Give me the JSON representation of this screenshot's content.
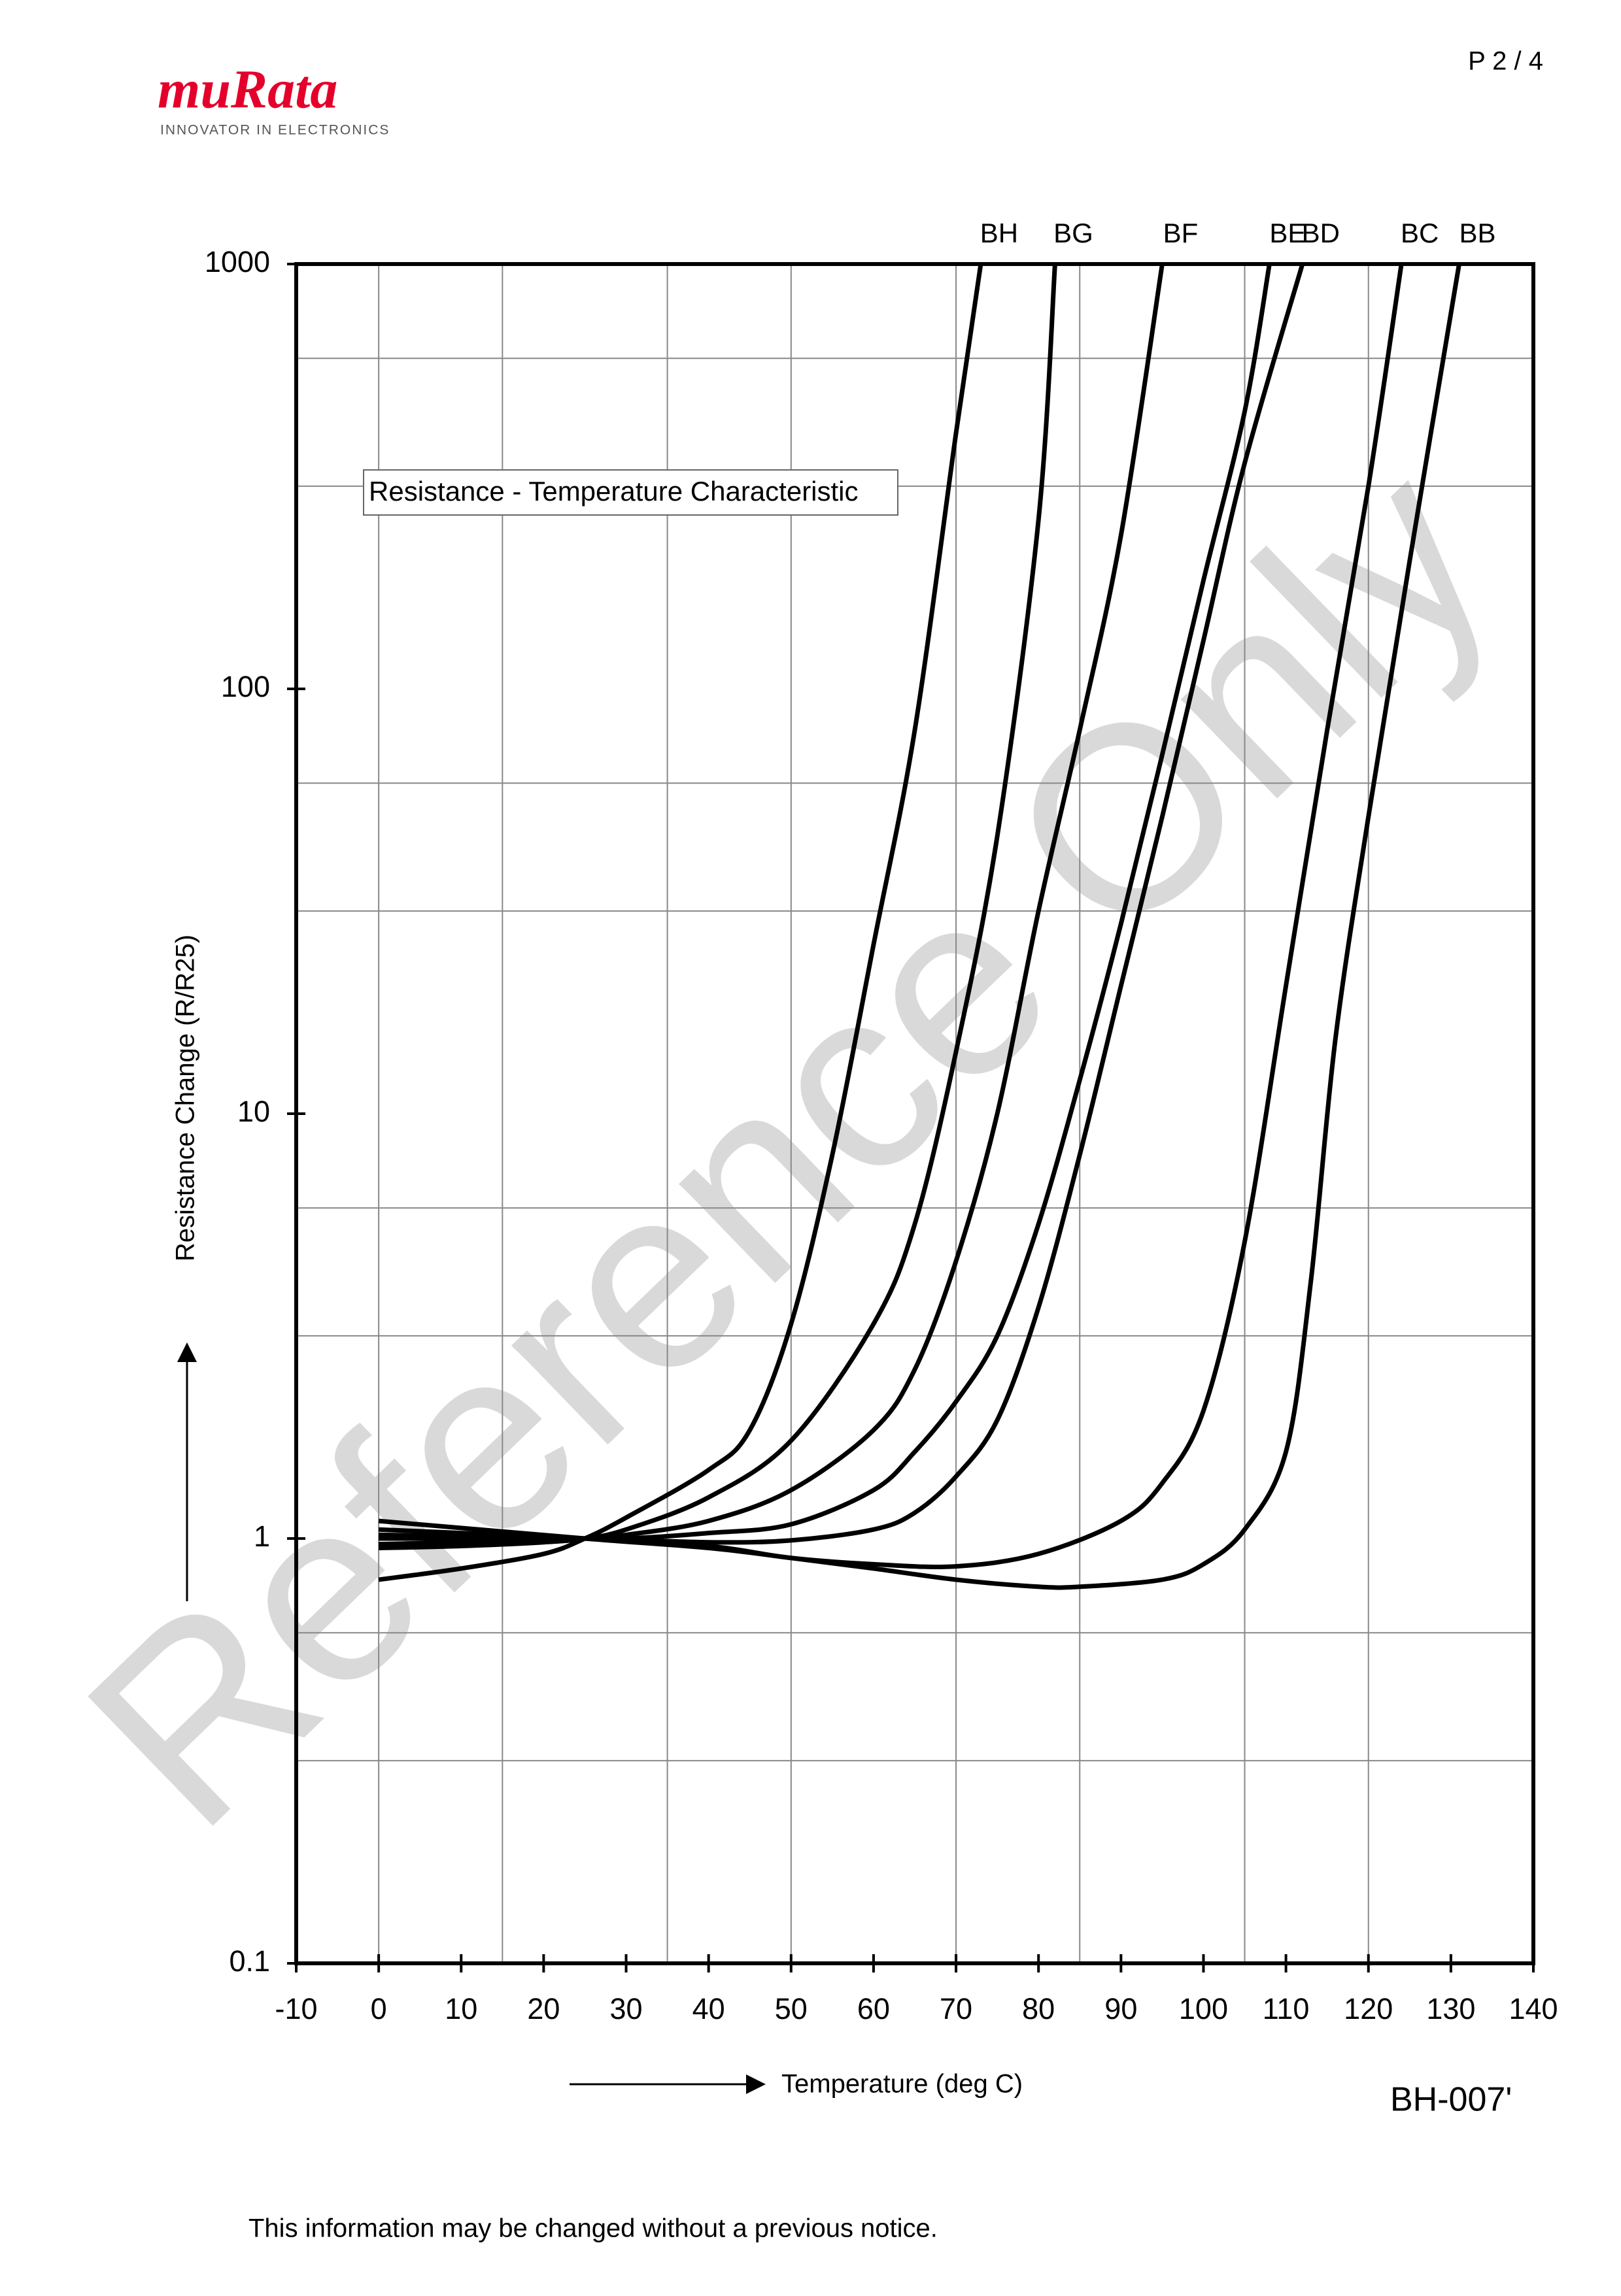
{
  "header": {
    "logo": "muRata",
    "tagline": "INNOVATOR IN ELECTRONICS",
    "page": "P 2 / 4"
  },
  "chart_data": {
    "type": "line",
    "title": "Resistance - Temperature Characteristic",
    "x_label": "Temperature (deg C)",
    "y_label": "Resistance Change (R/R25)",
    "y_scale": "log",
    "xlim": [
      -10,
      140
    ],
    "ylim": [
      0.1,
      1000
    ],
    "xticks": [
      -10,
      0,
      10,
      20,
      30,
      40,
      50,
      60,
      70,
      80,
      90,
      100,
      110,
      120,
      130,
      140
    ],
    "yticks": [
      0.1,
      1,
      10,
      100,
      1000
    ],
    "x_grid": [
      0,
      15,
      35,
      50,
      70,
      85,
      105,
      120
    ],
    "y_grid": [
      0.3,
      0.6,
      3,
      6,
      30,
      60,
      300,
      600
    ],
    "series": [
      {
        "name": "BH",
        "color": "#000000",
        "x": [
          0,
          10,
          20,
          25,
          30,
          40,
          45,
          50,
          55,
          60,
          65,
          70,
          73
        ],
        "values": [
          0.8,
          0.85,
          0.92,
          1,
          1.12,
          1.45,
          1.8,
          3.2,
          8,
          25,
          80,
          400,
          1000
        ]
      },
      {
        "name": "BG",
        "color": "#000000",
        "x": [
          0,
          10,
          20,
          25,
          30,
          40,
          50,
          60,
          65,
          70,
          75,
          80,
          82
        ],
        "values": [
          0.95,
          0.96,
          0.98,
          1,
          1.05,
          1.25,
          1.7,
          3.2,
          5.5,
          14,
          45,
          250,
          1000
        ]
      },
      {
        "name": "BF",
        "color": "#000000",
        "x": [
          0,
          20,
          25,
          30,
          40,
          50,
          60,
          65,
          70,
          75,
          80,
          85,
          90,
          95
        ],
        "values": [
          0.97,
          0.99,
          1,
          1.02,
          1.1,
          1.3,
          1.8,
          2.5,
          4.5,
          10,
          30,
          80,
          230,
          1000
        ]
      },
      {
        "name": "BE",
        "color": "#000000",
        "x": [
          0,
          25,
          30,
          40,
          50,
          60,
          65,
          70,
          75,
          80,
          85,
          90,
          95,
          100,
          105,
          108
        ],
        "values": [
          1,
          1,
          1,
          1.03,
          1.08,
          1.3,
          1.6,
          2.1,
          3,
          5.5,
          12,
          28,
          70,
          180,
          450,
          1000
        ]
      },
      {
        "name": "BD",
        "color": "#000000",
        "x": [
          0,
          25,
          40,
          50,
          60,
          65,
          70,
          75,
          80,
          85,
          90,
          95,
          100,
          105,
          112
        ],
        "values": [
          1.02,
          1,
          0.98,
          0.99,
          1.05,
          1.15,
          1.4,
          1.9,
          3.5,
          8,
          20,
          50,
          130,
          340,
          1000
        ]
      },
      {
        "name": "BC",
        "color": "#000000",
        "x": [
          0,
          25,
          40,
          50,
          60,
          70,
          80,
          90,
          95,
          100,
          105,
          110,
          115,
          120,
          124
        ],
        "values": [
          1.05,
          1,
          0.96,
          0.9,
          0.87,
          0.86,
          0.92,
          1.1,
          1.35,
          2,
          5,
          20,
          80,
          300,
          1000
        ]
      },
      {
        "name": "BB",
        "color": "#000000",
        "x": [
          0,
          25,
          40,
          50,
          60,
          70,
          80,
          85,
          95,
          100,
          105,
          110,
          113,
          116,
          120,
          125,
          131
        ],
        "values": [
          1.1,
          1,
          0.95,
          0.9,
          0.85,
          0.8,
          0.77,
          0.77,
          0.8,
          0.87,
          1.05,
          1.6,
          4,
          15,
          50,
          200,
          1000
        ]
      }
    ]
  },
  "watermark": "Reference Only",
  "doc_code": "BH-007'",
  "footer": "This information may be changed without a previous notice."
}
